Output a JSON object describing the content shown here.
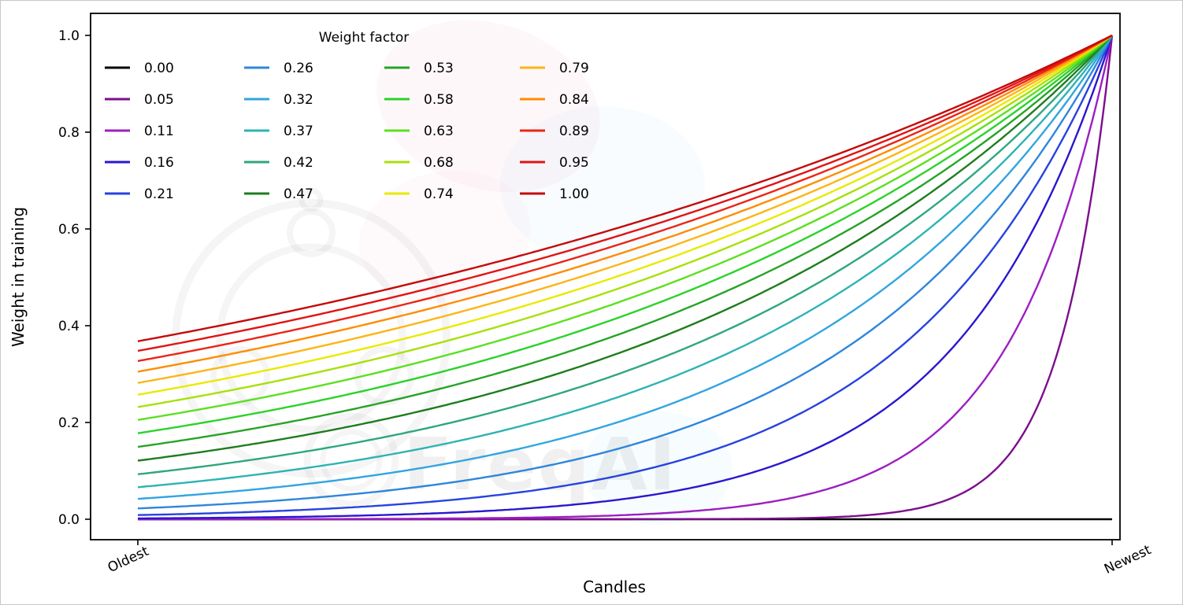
{
  "figure": {
    "background": "#ffffff"
  },
  "watermark": {
    "text": "FreqAI"
  },
  "legend": {
    "title": "Weight factor"
  },
  "chart_data": {
    "type": "line",
    "title": "",
    "xlabel": "Candles",
    "ylabel": "Weight in training",
    "x_axis": {
      "endpoint_labels": [
        "Oldest",
        "Newest"
      ],
      "range": [
        0,
        1
      ]
    },
    "ylim": [
      0,
      1.0
    ],
    "yticks": [
      0.0,
      0.2,
      0.4,
      0.6,
      0.8,
      1.0
    ],
    "grid": false,
    "legend": {
      "title": "Weight factor",
      "position": "upper-left",
      "columns": 4,
      "rows": 5,
      "fill_order": "column-major",
      "frame": false
    },
    "curve_rule": "y(t) = exp(-(1 - t) / weight_factor) for t from 0 at Oldest to 1 at Newest; weight_factor 0 gives y = 0; all curves reach y = 1.0 at Newest",
    "series": [
      {
        "name": "0.00",
        "weight_factor": 0,
        "color": "#000000"
      },
      {
        "name": "0.05",
        "weight_factor": 0.0526,
        "color": "#7d0d8e"
      },
      {
        "name": "0.11",
        "weight_factor": 0.1053,
        "color": "#9c1fc1"
      },
      {
        "name": "0.16",
        "weight_factor": 0.1579,
        "color": "#2a17cf"
      },
      {
        "name": "0.21",
        "weight_factor": 0.2105,
        "color": "#2743e0"
      },
      {
        "name": "0.26",
        "weight_factor": 0.2632,
        "color": "#2e86dc"
      },
      {
        "name": "0.32",
        "weight_factor": 0.3158,
        "color": "#31a5e0"
      },
      {
        "name": "0.37",
        "weight_factor": 0.3684,
        "color": "#2eb3b5"
      },
      {
        "name": "0.42",
        "weight_factor": 0.4211,
        "color": "#2fa77d"
      },
      {
        "name": "0.47",
        "weight_factor": 0.4737,
        "color": "#1e7d1e"
      },
      {
        "name": "0.53",
        "weight_factor": 0.5263,
        "color": "#27a427"
      },
      {
        "name": "0.58",
        "weight_factor": 0.5789,
        "color": "#2ad32a"
      },
      {
        "name": "0.63",
        "weight_factor": 0.6316,
        "color": "#5ce021"
      },
      {
        "name": "0.68",
        "weight_factor": 0.6842,
        "color": "#a8e00a"
      },
      {
        "name": "0.74",
        "weight_factor": 0.7368,
        "color": "#e9ea00"
      },
      {
        "name": "0.79",
        "weight_factor": 0.7895,
        "color": "#fdb515"
      },
      {
        "name": "0.84",
        "weight_factor": 0.8421,
        "color": "#ff8c00"
      },
      {
        "name": "0.89",
        "weight_factor": 0.8947,
        "color": "#ea2517"
      },
      {
        "name": "0.95",
        "weight_factor": 0.9474,
        "color": "#e01414"
      },
      {
        "name": "1.00",
        "weight_factor": 1,
        "color": "#c40a0a"
      }
    ]
  }
}
